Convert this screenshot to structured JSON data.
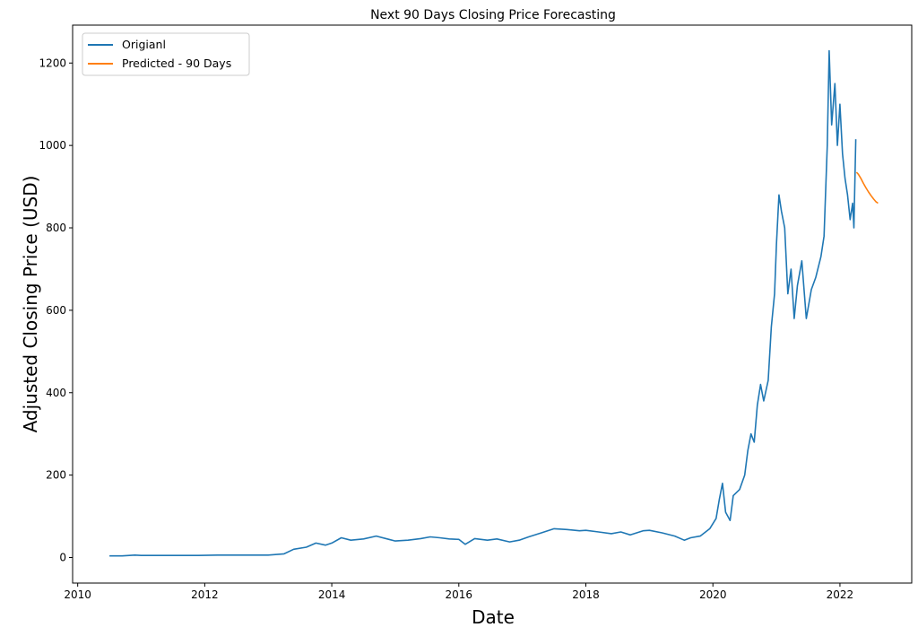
{
  "chart_data": {
    "type": "line",
    "title": "Next 90 Days Closing Price Forecasting",
    "xlabel": "Date",
    "ylabel": "Adjusted Closing Price (USD)",
    "xlim": [
      2009.92,
      2023.13
    ],
    "ylim": [
      -62,
      1292
    ],
    "x_ticks": [
      2010,
      2012,
      2014,
      2016,
      2018,
      2020,
      2022
    ],
    "y_ticks": [
      0,
      200,
      400,
      600,
      800,
      1000,
      1200
    ],
    "grid": false,
    "legend": "top-left",
    "series": [
      {
        "name": "Origianl",
        "color": "#1f77b4",
        "points": [
          [
            2010.5,
            4
          ],
          [
            2010.7,
            4
          ],
          [
            2010.9,
            6
          ],
          [
            2011.0,
            5
          ],
          [
            2011.3,
            5
          ],
          [
            2011.6,
            5
          ],
          [
            2011.9,
            5
          ],
          [
            2012.2,
            6
          ],
          [
            2012.5,
            6
          ],
          [
            2012.8,
            6
          ],
          [
            2013.0,
            6
          ],
          [
            2013.25,
            9
          ],
          [
            2013.4,
            20
          ],
          [
            2013.6,
            25
          ],
          [
            2013.75,
            35
          ],
          [
            2013.9,
            30
          ],
          [
            2014.0,
            35
          ],
          [
            2014.15,
            48
          ],
          [
            2014.3,
            42
          ],
          [
            2014.5,
            45
          ],
          [
            2014.7,
            52
          ],
          [
            2014.9,
            44
          ],
          [
            2015.0,
            40
          ],
          [
            2015.2,
            42
          ],
          [
            2015.4,
            46
          ],
          [
            2015.55,
            50
          ],
          [
            2015.7,
            48
          ],
          [
            2015.85,
            45
          ],
          [
            2016.0,
            44
          ],
          [
            2016.1,
            32
          ],
          [
            2016.25,
            46
          ],
          [
            2016.45,
            42
          ],
          [
            2016.6,
            45
          ],
          [
            2016.8,
            38
          ],
          [
            2016.95,
            42
          ],
          [
            2017.1,
            50
          ],
          [
            2017.3,
            60
          ],
          [
            2017.5,
            70
          ],
          [
            2017.7,
            68
          ],
          [
            2017.9,
            65
          ],
          [
            2018.0,
            66
          ],
          [
            2018.2,
            62
          ],
          [
            2018.4,
            58
          ],
          [
            2018.55,
            62
          ],
          [
            2018.7,
            55
          ],
          [
            2018.9,
            65
          ],
          [
            2019.0,
            66
          ],
          [
            2019.2,
            60
          ],
          [
            2019.4,
            52
          ],
          [
            2019.55,
            42
          ],
          [
            2019.65,
            48
          ],
          [
            2019.8,
            52
          ],
          [
            2019.95,
            70
          ],
          [
            2020.05,
            95
          ],
          [
            2020.1,
            140
          ],
          [
            2020.15,
            180
          ],
          [
            2020.2,
            110
          ],
          [
            2020.27,
            90
          ],
          [
            2020.32,
            150
          ],
          [
            2020.42,
            165
          ],
          [
            2020.5,
            200
          ],
          [
            2020.55,
            260
          ],
          [
            2020.6,
            300
          ],
          [
            2020.65,
            280
          ],
          [
            2020.7,
            370
          ],
          [
            2020.75,
            420
          ],
          [
            2020.8,
            380
          ],
          [
            2020.87,
            430
          ],
          [
            2020.92,
            560
          ],
          [
            2020.97,
            640
          ],
          [
            2021.0,
            760
          ],
          [
            2021.04,
            880
          ],
          [
            2021.08,
            840
          ],
          [
            2021.13,
            800
          ],
          [
            2021.18,
            640
          ],
          [
            2021.23,
            700
          ],
          [
            2021.28,
            580
          ],
          [
            2021.33,
            660
          ],
          [
            2021.4,
            720
          ],
          [
            2021.47,
            580
          ],
          [
            2021.55,
            650
          ],
          [
            2021.62,
            680
          ],
          [
            2021.7,
            730
          ],
          [
            2021.75,
            780
          ],
          [
            2021.8,
            1000
          ],
          [
            2021.83,
            1230
          ],
          [
            2021.87,
            1050
          ],
          [
            2021.92,
            1150
          ],
          [
            2021.96,
            1000
          ],
          [
            2022.0,
            1100
          ],
          [
            2022.04,
            980
          ],
          [
            2022.08,
            920
          ],
          [
            2022.12,
            880
          ],
          [
            2022.16,
            820
          ],
          [
            2022.2,
            860
          ],
          [
            2022.22,
            800
          ],
          [
            2022.25,
            1015
          ]
        ]
      },
      {
        "name": "Predicted - 90 Days",
        "color": "#ff7f0e",
        "points": [
          [
            2022.26,
            935
          ],
          [
            2022.29,
            930
          ],
          [
            2022.33,
            920
          ],
          [
            2022.37,
            908
          ],
          [
            2022.41,
            897
          ],
          [
            2022.45,
            887
          ],
          [
            2022.49,
            878
          ],
          [
            2022.53,
            870
          ],
          [
            2022.57,
            863
          ],
          [
            2022.6,
            860
          ]
        ]
      }
    ]
  }
}
